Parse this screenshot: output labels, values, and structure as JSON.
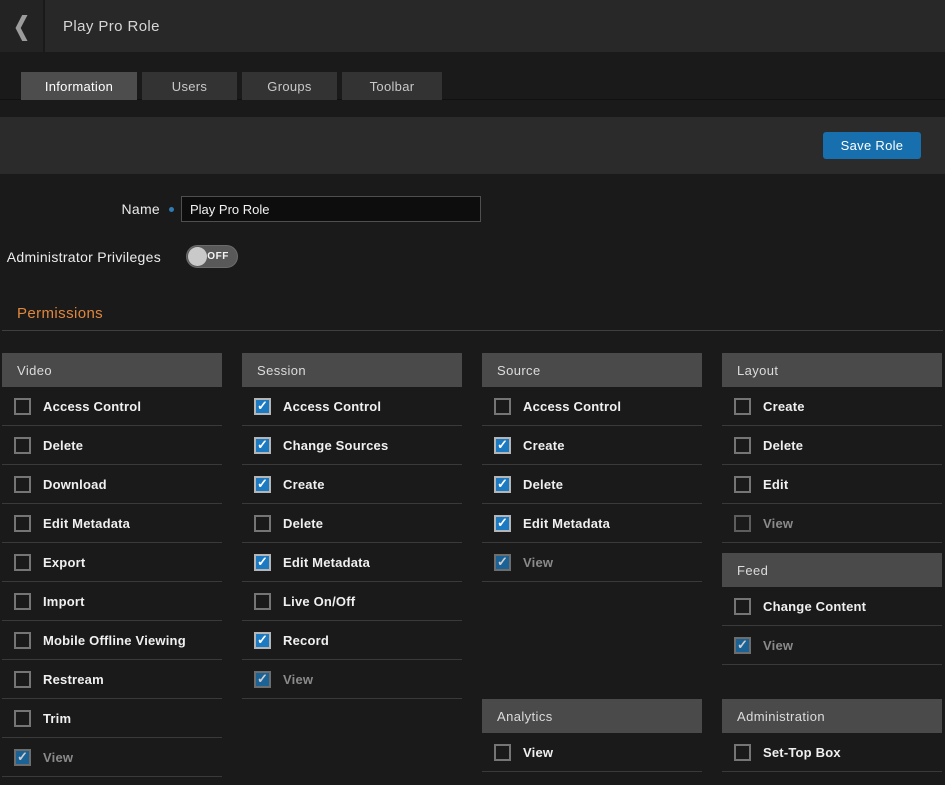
{
  "header": {
    "title": "Play Pro Role"
  },
  "icons": {
    "back": "❮",
    "check": "✓"
  },
  "tabs": [
    {
      "label": "Information",
      "active": true
    },
    {
      "label": "Users",
      "active": false
    },
    {
      "label": "Groups",
      "active": false
    },
    {
      "label": "Toolbar",
      "active": false
    }
  ],
  "toolbar": {
    "save_label": "Save Role"
  },
  "form": {
    "name_label": "Name",
    "name_value": "Play Pro Role",
    "admin_label": "Administrator Privileges",
    "toggle_state": "OFF",
    "toggle_on": false
  },
  "permissions": {
    "title": "Permissions",
    "columns": [
      [
        {
          "title": "Video",
          "items": [
            {
              "label": "Access Control",
              "checked": false,
              "disabled": false
            },
            {
              "label": "Delete",
              "checked": false,
              "disabled": false
            },
            {
              "label": "Download",
              "checked": false,
              "disabled": false
            },
            {
              "label": "Edit Metadata",
              "checked": false,
              "disabled": false
            },
            {
              "label": "Export",
              "checked": false,
              "disabled": false
            },
            {
              "label": "Import",
              "checked": false,
              "disabled": false
            },
            {
              "label": "Mobile Offline Viewing",
              "checked": false,
              "disabled": false
            },
            {
              "label": "Restream",
              "checked": false,
              "disabled": false
            },
            {
              "label": "Trim",
              "checked": false,
              "disabled": false
            },
            {
              "label": "View",
              "checked": true,
              "disabled": true
            }
          ]
        }
      ],
      [
        {
          "title": "Session",
          "items": [
            {
              "label": "Access Control",
              "checked": true,
              "disabled": false
            },
            {
              "label": "Change Sources",
              "checked": true,
              "disabled": false
            },
            {
              "label": "Create",
              "checked": true,
              "disabled": false
            },
            {
              "label": "Delete",
              "checked": false,
              "disabled": false
            },
            {
              "label": "Edit Metadata",
              "checked": true,
              "disabled": false
            },
            {
              "label": "Live On/Off",
              "checked": false,
              "disabled": false
            },
            {
              "label": "Record",
              "checked": true,
              "disabled": false
            },
            {
              "label": "View",
              "checked": true,
              "disabled": true
            }
          ]
        }
      ],
      [
        {
          "title": "Source",
          "items": [
            {
              "label": "Access Control",
              "checked": false,
              "disabled": false
            },
            {
              "label": "Create",
              "checked": true,
              "disabled": false
            },
            {
              "label": "Delete",
              "checked": true,
              "disabled": false
            },
            {
              "label": "Edit Metadata",
              "checked": true,
              "disabled": false
            },
            {
              "label": "View",
              "checked": true,
              "disabled": true
            }
          ]
        },
        {
          "title": "Analytics",
          "items": [
            {
              "label": "View",
              "checked": false,
              "disabled": false
            }
          ]
        }
      ],
      [
        {
          "title": "Layout",
          "items": [
            {
              "label": "Create",
              "checked": false,
              "disabled": false
            },
            {
              "label": "Delete",
              "checked": false,
              "disabled": false
            },
            {
              "label": "Edit",
              "checked": false,
              "disabled": false
            },
            {
              "label": "View",
              "checked": false,
              "disabled": true
            }
          ]
        },
        {
          "title": "Feed",
          "items": [
            {
              "label": "Change Content",
              "checked": false,
              "disabled": false
            },
            {
              "label": "View",
              "checked": true,
              "disabled": true
            }
          ]
        },
        {
          "title": "Administration",
          "items": [
            {
              "label": "Set-Top Box",
              "checked": false,
              "disabled": false
            }
          ]
        }
      ]
    ]
  },
  "colors": {
    "accent_blue": "#1b7ac1",
    "save_button_blue": "#1770ad",
    "heading_orange": "#e0873c",
    "page_background": "#1a1a1a"
  }
}
